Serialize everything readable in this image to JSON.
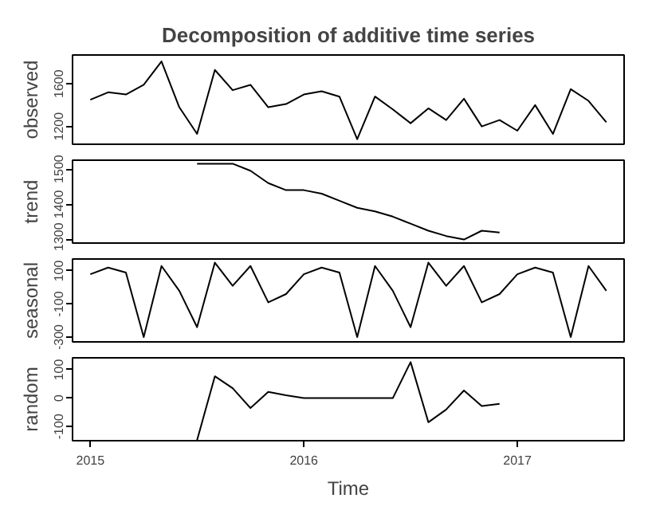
{
  "chart_data": [
    {
      "type": "line",
      "title": "Decomposition of additive time series",
      "ylabel": "observed",
      "x": [
        "2015-01",
        "2015-02",
        "2015-03",
        "2015-04",
        "2015-05",
        "2015-06",
        "2015-07",
        "2015-08",
        "2015-09",
        "2015-10",
        "2015-11",
        "2015-12",
        "2016-01",
        "2016-02",
        "2016-03",
        "2016-04",
        "2016-05",
        "2016-06",
        "2016-07",
        "2016-08",
        "2016-09",
        "2016-10",
        "2016-11",
        "2016-12",
        "2017-01",
        "2017-02",
        "2017-03",
        "2017-04",
        "2017-05",
        "2017-06"
      ],
      "values": [
        1450,
        1520,
        1500,
        1590,
        1810,
        1380,
        1130,
        1730,
        1540,
        1590,
        1380,
        1410,
        1500,
        1530,
        1480,
        1080,
        1480,
        1360,
        1230,
        1370,
        1260,
        1460,
        1200,
        1260,
        1160,
        1400,
        1130,
        1550,
        1440,
        1240
      ],
      "color": "#000000",
      "xlim": [
        "2014-12",
        "2017-07"
      ],
      "xticks": [
        "2015",
        "2016",
        "2017"
      ],
      "ylim": [
        1033,
        1870
      ],
      "yticks": [
        1200,
        1600
      ],
      "tick_labels": "y",
      "grid": false
    },
    {
      "type": "line",
      "ylabel": "trend",
      "x": [
        "2015-07",
        "2015-08",
        "2015-09",
        "2015-10",
        "2015-11",
        "2015-12",
        "2016-01",
        "2016-02",
        "2016-03",
        "2016-04",
        "2016-05",
        "2016-06",
        "2016-07",
        "2016-08",
        "2016-09",
        "2016-10",
        "2016-11",
        "2016-12"
      ],
      "values": [
        1515,
        1515,
        1515,
        1495,
        1460,
        1440,
        1440,
        1430,
        1410,
        1390,
        1380,
        1365,
        1345,
        1325,
        1310,
        1300,
        1325,
        1320
      ],
      "color": "#000000",
      "xlim": [
        "2014-12",
        "2017-07"
      ],
      "xticks": [
        "2015",
        "2016",
        "2017"
      ],
      "ylim": [
        1290,
        1525
      ],
      "yticks": [
        1300,
        1400,
        1500
      ],
      "tick_labels": "y",
      "grid": false
    },
    {
      "type": "line",
      "ylabel": "seasonal",
      "x": [
        "2015-01",
        "2015-02",
        "2015-03",
        "2015-04",
        "2015-05",
        "2015-06",
        "2015-07",
        "2015-08",
        "2015-09",
        "2015-10",
        "2015-11",
        "2015-12",
        "2016-01",
        "2016-02",
        "2016-03",
        "2016-04",
        "2016-05",
        "2016-06",
        "2016-07",
        "2016-08",
        "2016-09",
        "2016-10",
        "2016-11",
        "2016-12",
        "2017-01",
        "2017-02",
        "2017-03",
        "2017-04",
        "2017-05",
        "2017-06"
      ],
      "values": [
        80,
        120,
        90,
        -300,
        130,
        -20,
        -240,
        150,
        10,
        130,
        -90,
        -40,
        80,
        120,
        90,
        -300,
        130,
        -20,
        -240,
        150,
        10,
        130,
        -90,
        -40,
        80,
        120,
        90,
        -300,
        130,
        -20
      ],
      "color": "#000000",
      "xlim": [
        "2014-12",
        "2017-07"
      ],
      "xticks": [
        "2015",
        "2016",
        "2017"
      ],
      "ylim": [
        -329,
        172
      ],
      "yticks": [
        -300,
        -100,
        100
      ],
      "tick_labels": "y",
      "grid": false
    },
    {
      "type": "line",
      "ylabel": "random",
      "xlabel": "Time",
      "x": [
        "2015-07",
        "2015-08",
        "2015-09",
        "2015-10",
        "2015-11",
        "2015-12",
        "2016-01",
        "2016-02",
        "2016-03",
        "2016-04",
        "2016-05",
        "2016-06",
        "2016-07",
        "2016-08",
        "2016-09",
        "2016-10",
        "2016-11",
        "2016-12"
      ],
      "values": [
        -148,
        77,
        35,
        -35,
        22,
        10,
        0,
        0,
        0,
        0,
        0,
        0,
        127,
        -85,
        -40,
        27,
        -28,
        -20
      ],
      "color": "#000000",
      "xlim": [
        "2014-12",
        "2017-07"
      ],
      "xticks": [
        "2015",
        "2016",
        "2017"
      ],
      "ylim": [
        -150,
        142
      ],
      "yticks": [
        -100,
        0,
        100
      ],
      "grid": false
    }
  ]
}
